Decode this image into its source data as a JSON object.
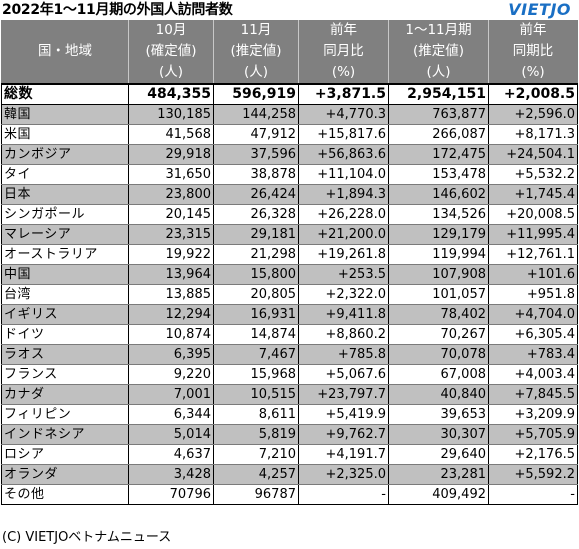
{
  "title": "2022年1～11月期の外国人訪問者数",
  "logo": "VIETJO",
  "columns": [
    {
      "lines": [
        "国・地域"
      ]
    },
    {
      "lines": [
        "10月",
        "(確定値)",
        "(人)"
      ]
    },
    {
      "lines": [
        "11月",
        "(推定値)",
        "(人)"
      ]
    },
    {
      "lines": [
        "前年",
        "同月比",
        "(%)"
      ]
    },
    {
      "lines": [
        "1～11月期",
        "(推定値)",
        "(人)"
      ]
    },
    {
      "lines": [
        "前年",
        "同期比",
        "(%)"
      ]
    }
  ],
  "rows": [
    {
      "name": "総数",
      "oct": "484,355",
      "nov": "596,919",
      "mom": "+3,871.5",
      "ytd": "2,954,151",
      "yoy": "+2,008.5",
      "shade": "white",
      "bold": true
    },
    {
      "name": "韓国",
      "oct": "130,185",
      "nov": "144,258",
      "mom": "+4,770.3",
      "ytd": "763,877",
      "yoy": "+2,596.0",
      "shade": "gray"
    },
    {
      "name": "米国",
      "oct": "41,568",
      "nov": "47,912",
      "mom": "+15,817.6",
      "ytd": "266,087",
      "yoy": "+8,171.3",
      "shade": "white"
    },
    {
      "name": "カンボジア",
      "oct": "29,918",
      "nov": "37,596",
      "mom": "+56,863.6",
      "ytd": "172,475",
      "yoy": "+24,504.1",
      "shade": "gray"
    },
    {
      "name": "タイ",
      "oct": "31,650",
      "nov": "38,878",
      "mom": "+11,104.0",
      "ytd": "153,478",
      "yoy": "+5,532.2",
      "shade": "white"
    },
    {
      "name": "日本",
      "oct": "23,800",
      "nov": "26,424",
      "mom": "+1,894.3",
      "ytd": "146,602",
      "yoy": "+1,745.4",
      "shade": "gray"
    },
    {
      "name": "シンガポール",
      "oct": "20,145",
      "nov": "26,328",
      "mom": "+26,228.0",
      "ytd": "134,526",
      "yoy": "+20,008.5",
      "shade": "white"
    },
    {
      "name": "マレーシア",
      "oct": "23,315",
      "nov": "29,181",
      "mom": "+21,200.0",
      "ytd": "129,179",
      "yoy": "+11,995.4",
      "shade": "gray"
    },
    {
      "name": "オーストラリア",
      "oct": "19,922",
      "nov": "21,298",
      "mom": "+19,261.8",
      "ytd": "119,994",
      "yoy": "+12,761.1",
      "shade": "white"
    },
    {
      "name": "中国",
      "oct": "13,964",
      "nov": "15,800",
      "mom": "+253.5",
      "ytd": "107,908",
      "yoy": "+101.6",
      "shade": "gray"
    },
    {
      "name": "台湾",
      "oct": "13,885",
      "nov": "20,805",
      "mom": "+2,322.0",
      "ytd": "101,057",
      "yoy": "+951.8",
      "shade": "white"
    },
    {
      "name": "イギリス",
      "oct": "12,294",
      "nov": "16,931",
      "mom": "+9,411.8",
      "ytd": "78,402",
      "yoy": "+4,704.0",
      "shade": "gray"
    },
    {
      "name": "ドイツ",
      "oct": "10,874",
      "nov": "14,874",
      "mom": "+8,860.2",
      "ytd": "70,267",
      "yoy": "+6,305.4",
      "shade": "white"
    },
    {
      "name": "ラオス",
      "oct": "6,395",
      "nov": "7,467",
      "mom": "+785.8",
      "ytd": "70,078",
      "yoy": "+783.4",
      "shade": "gray"
    },
    {
      "name": "フランス",
      "oct": "9,220",
      "nov": "15,968",
      "mom": "+5,067.6",
      "ytd": "67,008",
      "yoy": "+4,003.4",
      "shade": "white"
    },
    {
      "name": "カナダ",
      "oct": "7,001",
      "nov": "10,515",
      "mom": "+23,797.7",
      "ytd": "40,840",
      "yoy": "+7,845.5",
      "shade": "gray"
    },
    {
      "name": "フィリピン",
      "oct": "6,344",
      "nov": "8,611",
      "mom": "+5,419.9",
      "ytd": "39,653",
      "yoy": "+3,209.9",
      "shade": "white"
    },
    {
      "name": "インドネシア",
      "oct": "5,014",
      "nov": "5,819",
      "mom": "+9,762.7",
      "ytd": "30,307",
      "yoy": "+5,705.9",
      "shade": "gray"
    },
    {
      "name": "ロシア",
      "oct": "4,637",
      "nov": "7,210",
      "mom": "+4,191.7",
      "ytd": "29,640",
      "yoy": "+2,176.5",
      "shade": "white"
    },
    {
      "name": "オランダ",
      "oct": "3,428",
      "nov": "4,257",
      "mom": "+2,325.0",
      "ytd": "23,281",
      "yoy": "+5,592.2",
      "shade": "gray"
    },
    {
      "name": "その他",
      "oct": "70796",
      "nov": "96787",
      "mom": "-",
      "ytd": "409,492",
      "yoy": "-",
      "shade": "white"
    }
  ],
  "source": "(C) VIETJOベトナムニュース",
  "colors": {
    "header_bg": "#808080",
    "header_text": "#ffffff",
    "row_gray": "#c0c0c0",
    "logo": "#1a6fc4"
  }
}
